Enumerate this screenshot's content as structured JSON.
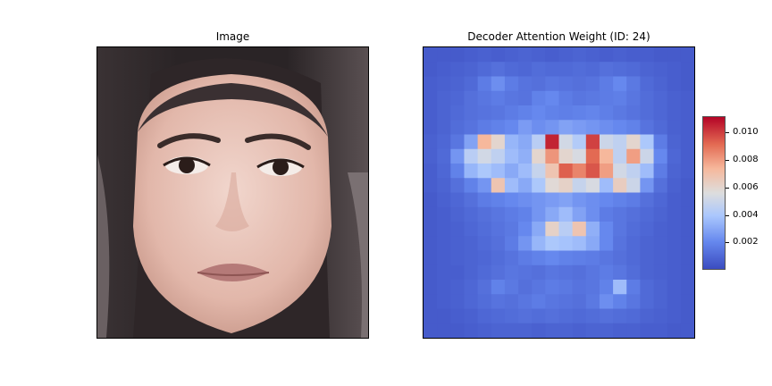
{
  "panels": {
    "left_title": "Image",
    "right_title": "Decoder Attention Weight (ID: 24)"
  },
  "chart_data": {
    "type": "heatmap",
    "title": "Decoder Attention Weight (ID: 24)",
    "colormap": "coolwarm",
    "colorbar": {
      "min": 0.0,
      "max": 0.0112,
      "ticks": [
        0.002,
        0.004,
        0.006,
        0.008,
        0.01
      ],
      "tick_labels": [
        "0.002",
        "0.004",
        "0.006",
        "0.008",
        "0.010"
      ]
    },
    "rows": 20,
    "cols": 20,
    "values": [
      [
        0.0005,
        0.0005,
        0.0005,
        0.0006,
        0.0007,
        0.0006,
        0.0007,
        0.0008,
        0.0007,
        0.0006,
        0.0007,
        0.0008,
        0.0007,
        0.0006,
        0.0007,
        0.0006,
        0.0006,
        0.0005,
        0.0005,
        0.0005
      ],
      [
        0.0005,
        0.0006,
        0.0007,
        0.0008,
        0.001,
        0.0012,
        0.001,
        0.0009,
        0.0011,
        0.001,
        0.001,
        0.0011,
        0.001,
        0.0012,
        0.0011,
        0.001,
        0.0008,
        0.0007,
        0.0006,
        0.0005
      ],
      [
        0.0006,
        0.0007,
        0.0008,
        0.001,
        0.0016,
        0.0022,
        0.0016,
        0.0013,
        0.0012,
        0.0014,
        0.0013,
        0.0012,
        0.0013,
        0.0016,
        0.002,
        0.0015,
        0.001,
        0.0008,
        0.0006,
        0.0005
      ],
      [
        0.0006,
        0.0008,
        0.0009,
        0.0012,
        0.0014,
        0.0016,
        0.0014,
        0.0013,
        0.0018,
        0.002,
        0.0016,
        0.0014,
        0.0015,
        0.0016,
        0.0017,
        0.0014,
        0.0011,
        0.0009,
        0.0007,
        0.0006
      ],
      [
        0.0006,
        0.0008,
        0.001,
        0.0012,
        0.0013,
        0.0014,
        0.0016,
        0.0018,
        0.002,
        0.0018,
        0.0017,
        0.0018,
        0.0019,
        0.0017,
        0.0015,
        0.0013,
        0.0011,
        0.0009,
        0.0007,
        0.0006
      ],
      [
        0.0006,
        0.0008,
        0.0011,
        0.0013,
        0.0016,
        0.0018,
        0.002,
        0.0026,
        0.0022,
        0.0024,
        0.0028,
        0.0026,
        0.0024,
        0.0022,
        0.002,
        0.0018,
        0.0013,
        0.001,
        0.0007,
        0.0006
      ],
      [
        0.0007,
        0.0009,
        0.0014,
        0.0028,
        0.0074,
        0.006,
        0.0034,
        0.003,
        0.0044,
        0.0106,
        0.0052,
        0.0042,
        0.01,
        0.005,
        0.0046,
        0.006,
        0.004,
        0.0016,
        0.0008,
        0.0006
      ],
      [
        0.0007,
        0.001,
        0.0024,
        0.0044,
        0.0052,
        0.0046,
        0.0036,
        0.0032,
        0.006,
        0.0082,
        0.006,
        0.0054,
        0.0092,
        0.0074,
        0.0046,
        0.008,
        0.005,
        0.002,
        0.0009,
        0.0006
      ],
      [
        0.0006,
        0.0009,
        0.0018,
        0.0034,
        0.004,
        0.0036,
        0.003,
        0.0036,
        0.0048,
        0.0068,
        0.0094,
        0.0086,
        0.0096,
        0.008,
        0.0052,
        0.0046,
        0.0036,
        0.0016,
        0.0008,
        0.0006
      ],
      [
        0.0006,
        0.0008,
        0.0012,
        0.0018,
        0.0024,
        0.0068,
        0.0036,
        0.003,
        0.004,
        0.0058,
        0.0062,
        0.0048,
        0.0054,
        0.0036,
        0.0064,
        0.005,
        0.0024,
        0.0012,
        0.0007,
        0.0005
      ],
      [
        0.0005,
        0.0007,
        0.0009,
        0.0012,
        0.0016,
        0.0018,
        0.002,
        0.0022,
        0.0024,
        0.0026,
        0.0028,
        0.0024,
        0.0022,
        0.002,
        0.0018,
        0.0016,
        0.0012,
        0.0009,
        0.0006,
        0.0005
      ],
      [
        0.0005,
        0.0006,
        0.0008,
        0.001,
        0.0012,
        0.0014,
        0.0016,
        0.0018,
        0.0024,
        0.003,
        0.0036,
        0.0028,
        0.0022,
        0.0016,
        0.0014,
        0.0012,
        0.001,
        0.0008,
        0.0006,
        0.0005
      ],
      [
        0.0005,
        0.0006,
        0.0007,
        0.0009,
        0.0011,
        0.0013,
        0.0015,
        0.002,
        0.003,
        0.0062,
        0.0044,
        0.0068,
        0.0032,
        0.002,
        0.0014,
        0.0011,
        0.0009,
        0.0007,
        0.0006,
        0.0005
      ],
      [
        0.0005,
        0.0006,
        0.0007,
        0.0008,
        0.001,
        0.0012,
        0.0016,
        0.0024,
        0.0034,
        0.004,
        0.0038,
        0.0036,
        0.003,
        0.002,
        0.0013,
        0.001,
        0.0008,
        0.0007,
        0.0006,
        0.0005
      ],
      [
        0.0005,
        0.0006,
        0.0007,
        0.0008,
        0.0009,
        0.0011,
        0.0013,
        0.0016,
        0.0018,
        0.002,
        0.0018,
        0.0017,
        0.0016,
        0.0014,
        0.0012,
        0.001,
        0.0008,
        0.0007,
        0.0006,
        0.0005
      ],
      [
        0.0005,
        0.0006,
        0.0006,
        0.0008,
        0.001,
        0.0012,
        0.0014,
        0.0013,
        0.0012,
        0.0014,
        0.0013,
        0.0012,
        0.0014,
        0.0016,
        0.0014,
        0.0011,
        0.0008,
        0.0007,
        0.0006,
        0.0005
      ],
      [
        0.0005,
        0.0006,
        0.0007,
        0.0009,
        0.0012,
        0.0018,
        0.0015,
        0.0012,
        0.0014,
        0.0016,
        0.0015,
        0.0013,
        0.0014,
        0.0018,
        0.0036,
        0.0016,
        0.001,
        0.0008,
        0.0006,
        0.0005
      ],
      [
        0.0005,
        0.0006,
        0.0007,
        0.0009,
        0.0011,
        0.0013,
        0.0012,
        0.0014,
        0.0016,
        0.0014,
        0.0013,
        0.0012,
        0.0015,
        0.0022,
        0.0018,
        0.0014,
        0.001,
        0.0008,
        0.0006,
        0.0005
      ],
      [
        0.0005,
        0.0005,
        0.0006,
        0.0007,
        0.0009,
        0.001,
        0.0011,
        0.0012,
        0.0011,
        0.0012,
        0.0011,
        0.001,
        0.0011,
        0.0012,
        0.0011,
        0.001,
        0.0008,
        0.0007,
        0.0006,
        0.0005
      ],
      [
        0.0005,
        0.0005,
        0.0005,
        0.0006,
        0.0007,
        0.0008,
        0.0008,
        0.0008,
        0.0007,
        0.0008,
        0.0008,
        0.0007,
        0.0008,
        0.0008,
        0.0007,
        0.0007,
        0.0006,
        0.0006,
        0.0005,
        0.0005
      ]
    ]
  }
}
